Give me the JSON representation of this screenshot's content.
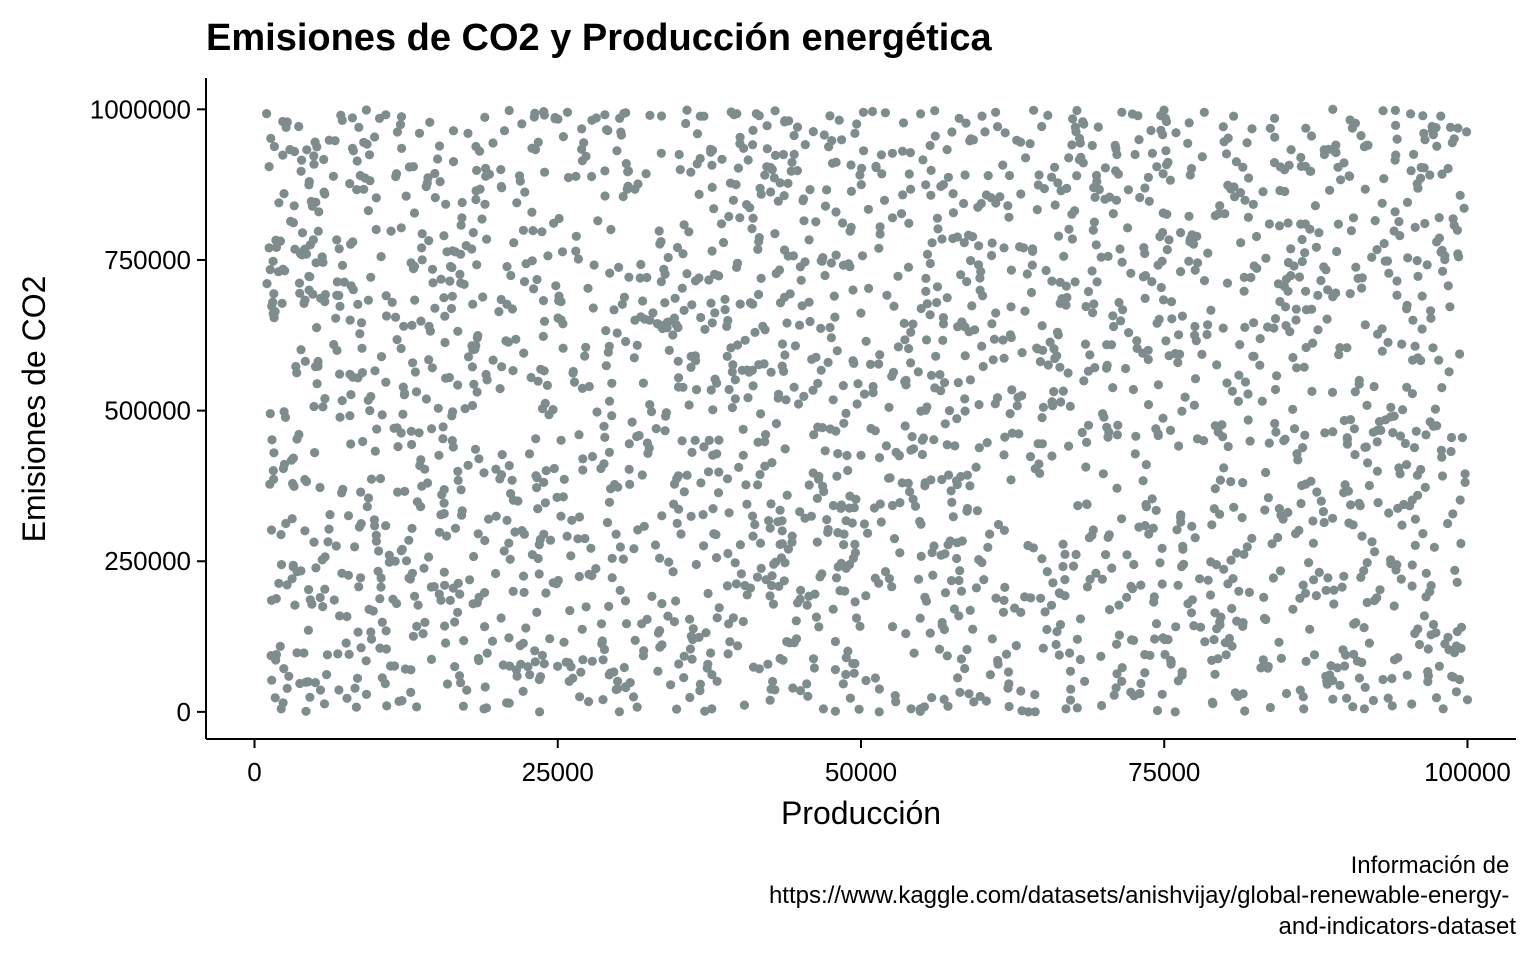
{
  "chart_data": {
    "type": "scatter",
    "title": "Emisiones de CO2 y Producción energética",
    "xlabel": "Producción",
    "ylabel": "Emisiones de CO2",
    "caption": [
      "Información de",
      "https://www.kaggle.com/datasets/anishvijay/global-renewable-energy-",
      "and-indicators-dataset"
    ],
    "xlim": [
      -4000,
      104000
    ],
    "ylim": [
      -45000,
      1052000
    ],
    "x_ticks": [
      0,
      25000,
      50000,
      75000,
      100000
    ],
    "x_tick_labels": [
      "0",
      "25000",
      "50000",
      "75000",
      "100000"
    ],
    "y_ticks": [
      0,
      250000,
      500000,
      750000,
      1000000
    ],
    "y_tick_labels": [
      "0",
      "250000",
      "500000",
      "750000",
      "1000000"
    ],
    "grid": false,
    "legend": "none",
    "point_color": "#7f8c8d",
    "series": [
      {
        "n_points": 2500,
        "x_range": [
          1000,
          100000
        ],
        "y_range": [
          0,
          1000000
        ],
        "distribution": "approximately uniform, no visible correlation",
        "points": [
          [
            1000,
            993000
          ],
          [
            1200,
            905000
          ],
          [
            1500,
            680000
          ],
          [
            1300,
            495000
          ],
          [
            1600,
            430000
          ],
          [
            1400,
            185000
          ],
          [
            1800,
            95000
          ],
          [
            2200,
            5000
          ],
          [
            2600,
            970000
          ],
          [
            3300,
            930000
          ],
          [
            3800,
            760000
          ],
          [
            4500,
            700000
          ],
          [
            5300,
            830000
          ],
          [
            5800,
            520000
          ],
          [
            6800,
            600000
          ],
          [
            7200,
            230000
          ],
          [
            8100,
            780000
          ],
          [
            8600,
            970000
          ],
          [
            9400,
            355000
          ],
          [
            10300,
            985000
          ],
          [
            10900,
            10000
          ],
          [
            11600,
            250000
          ],
          [
            12300,
            640000
          ],
          [
            13100,
            905000
          ],
          [
            13900,
            130000
          ],
          [
            14600,
            470000
          ],
          [
            15300,
            880000
          ],
          [
            16100,
            715000
          ],
          [
            16900,
            60000
          ],
          [
            17600,
            960000
          ],
          [
            18500,
            420000
          ],
          [
            19300,
            320000
          ],
          [
            20300,
            900000
          ],
          [
            21000,
            998000
          ],
          [
            21900,
            110000
          ],
          [
            22800,
            555000
          ],
          [
            23500,
            0
          ],
          [
            24400,
            285000
          ],
          [
            25100,
            690000
          ],
          [
            25800,
            995000
          ],
          [
            26800,
            25000
          ],
          [
            27600,
            540000
          ],
          [
            28300,
            815000
          ],
          [
            29200,
            175000
          ],
          [
            30100,
            985000
          ],
          [
            30900,
            445000
          ],
          [
            31800,
            720000
          ],
          [
            32600,
            990000
          ],
          [
            33400,
            255000
          ],
          [
            34300,
            45000
          ],
          [
            35100,
            900000
          ],
          [
            36000,
            590000
          ],
          [
            36800,
            380000
          ],
          [
            37700,
            5000
          ],
          [
            38500,
            810000
          ],
          [
            39400,
            505000
          ],
          [
            40300,
            150000
          ],
          [
            41100,
            965000
          ],
          [
            41900,
            640000
          ],
          [
            42800,
            245000
          ],
          [
            43600,
            925000
          ],
          [
            44500,
            115000
          ],
          [
            45300,
            815000
          ],
          [
            46100,
            460000
          ],
          [
            46900,
            5000
          ],
          [
            47800,
            690000
          ],
          [
            48600,
            295000
          ],
          [
            49500,
            960000
          ],
          [
            50200,
            995000
          ],
          [
            51000,
            540000
          ],
          [
            51500,
            0
          ],
          [
            52600,
            820000
          ],
          [
            53400,
            380000
          ],
          [
            54100,
            630000
          ],
          [
            54900,
            5000
          ],
          [
            55700,
            940000
          ],
          [
            56600,
            260000
          ],
          [
            57300,
            500000
          ],
          [
            58100,
            985000
          ],
          [
            58900,
            30000
          ],
          [
            59800,
            720000
          ],
          [
            60600,
            295000
          ],
          [
            61100,
            995000
          ],
          [
            62100,
            840000
          ],
          [
            62800,
            110000
          ],
          [
            63800,
            0
          ],
          [
            64600,
            445000
          ],
          [
            65400,
            990000
          ],
          [
            66200,
            630000
          ],
          [
            66900,
            5000
          ],
          [
            67800,
            998000
          ],
          [
            68600,
            345000
          ],
          [
            69400,
            775000
          ],
          [
            70300,
            575000
          ],
          [
            71100,
            925000
          ],
          [
            71900,
            190000
          ],
          [
            72600,
            925000
          ],
          [
            73400,
            95000
          ],
          [
            74300,
            470000
          ],
          [
            75100,
            985000
          ],
          [
            75900,
            0
          ],
          [
            76600,
            245000
          ],
          [
            77500,
            625000
          ],
          [
            78300,
            995000
          ],
          [
            79100,
            120000
          ],
          [
            79900,
            405000
          ],
          [
            80800,
            855000
          ],
          [
            81500,
            30000
          ],
          [
            82400,
            590000
          ],
          [
            83200,
            190000
          ],
          [
            84100,
            985000
          ],
          [
            84800,
            320000
          ],
          [
            85700,
            740000
          ],
          [
            86500,
            5000
          ],
          [
            87300,
            280000
          ],
          [
            88200,
            925000
          ],
          [
            88900,
            465000
          ],
          [
            89800,
            225000
          ],
          [
            90600,
            820000
          ],
          [
            91500,
            5000
          ],
          [
            92300,
            540000
          ],
          [
            93100,
            885000
          ],
          [
            93800,
            10000
          ],
          [
            94600,
            310000
          ],
          [
            95500,
            650000
          ],
          [
            96400,
            960000
          ],
          [
            97200,
            145000
          ],
          [
            98000,
            5000
          ],
          [
            98600,
            970000
          ],
          [
            99200,
            760000
          ],
          [
            99800,
            395000
          ],
          [
            100000,
            20000
          ]
        ]
      }
    ]
  }
}
